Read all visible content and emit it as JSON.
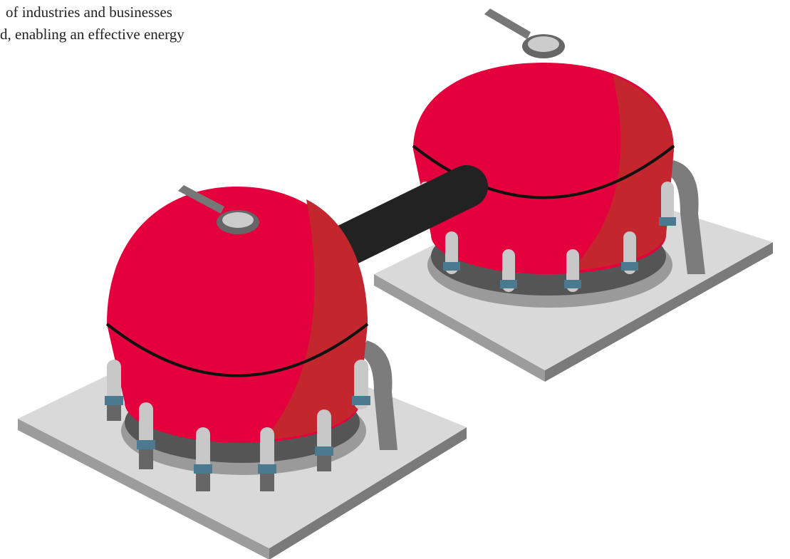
{
  "text": {
    "lines": [
      "of  industries and businesses",
      "d, enabling an effective energy"
    ]
  }
}
